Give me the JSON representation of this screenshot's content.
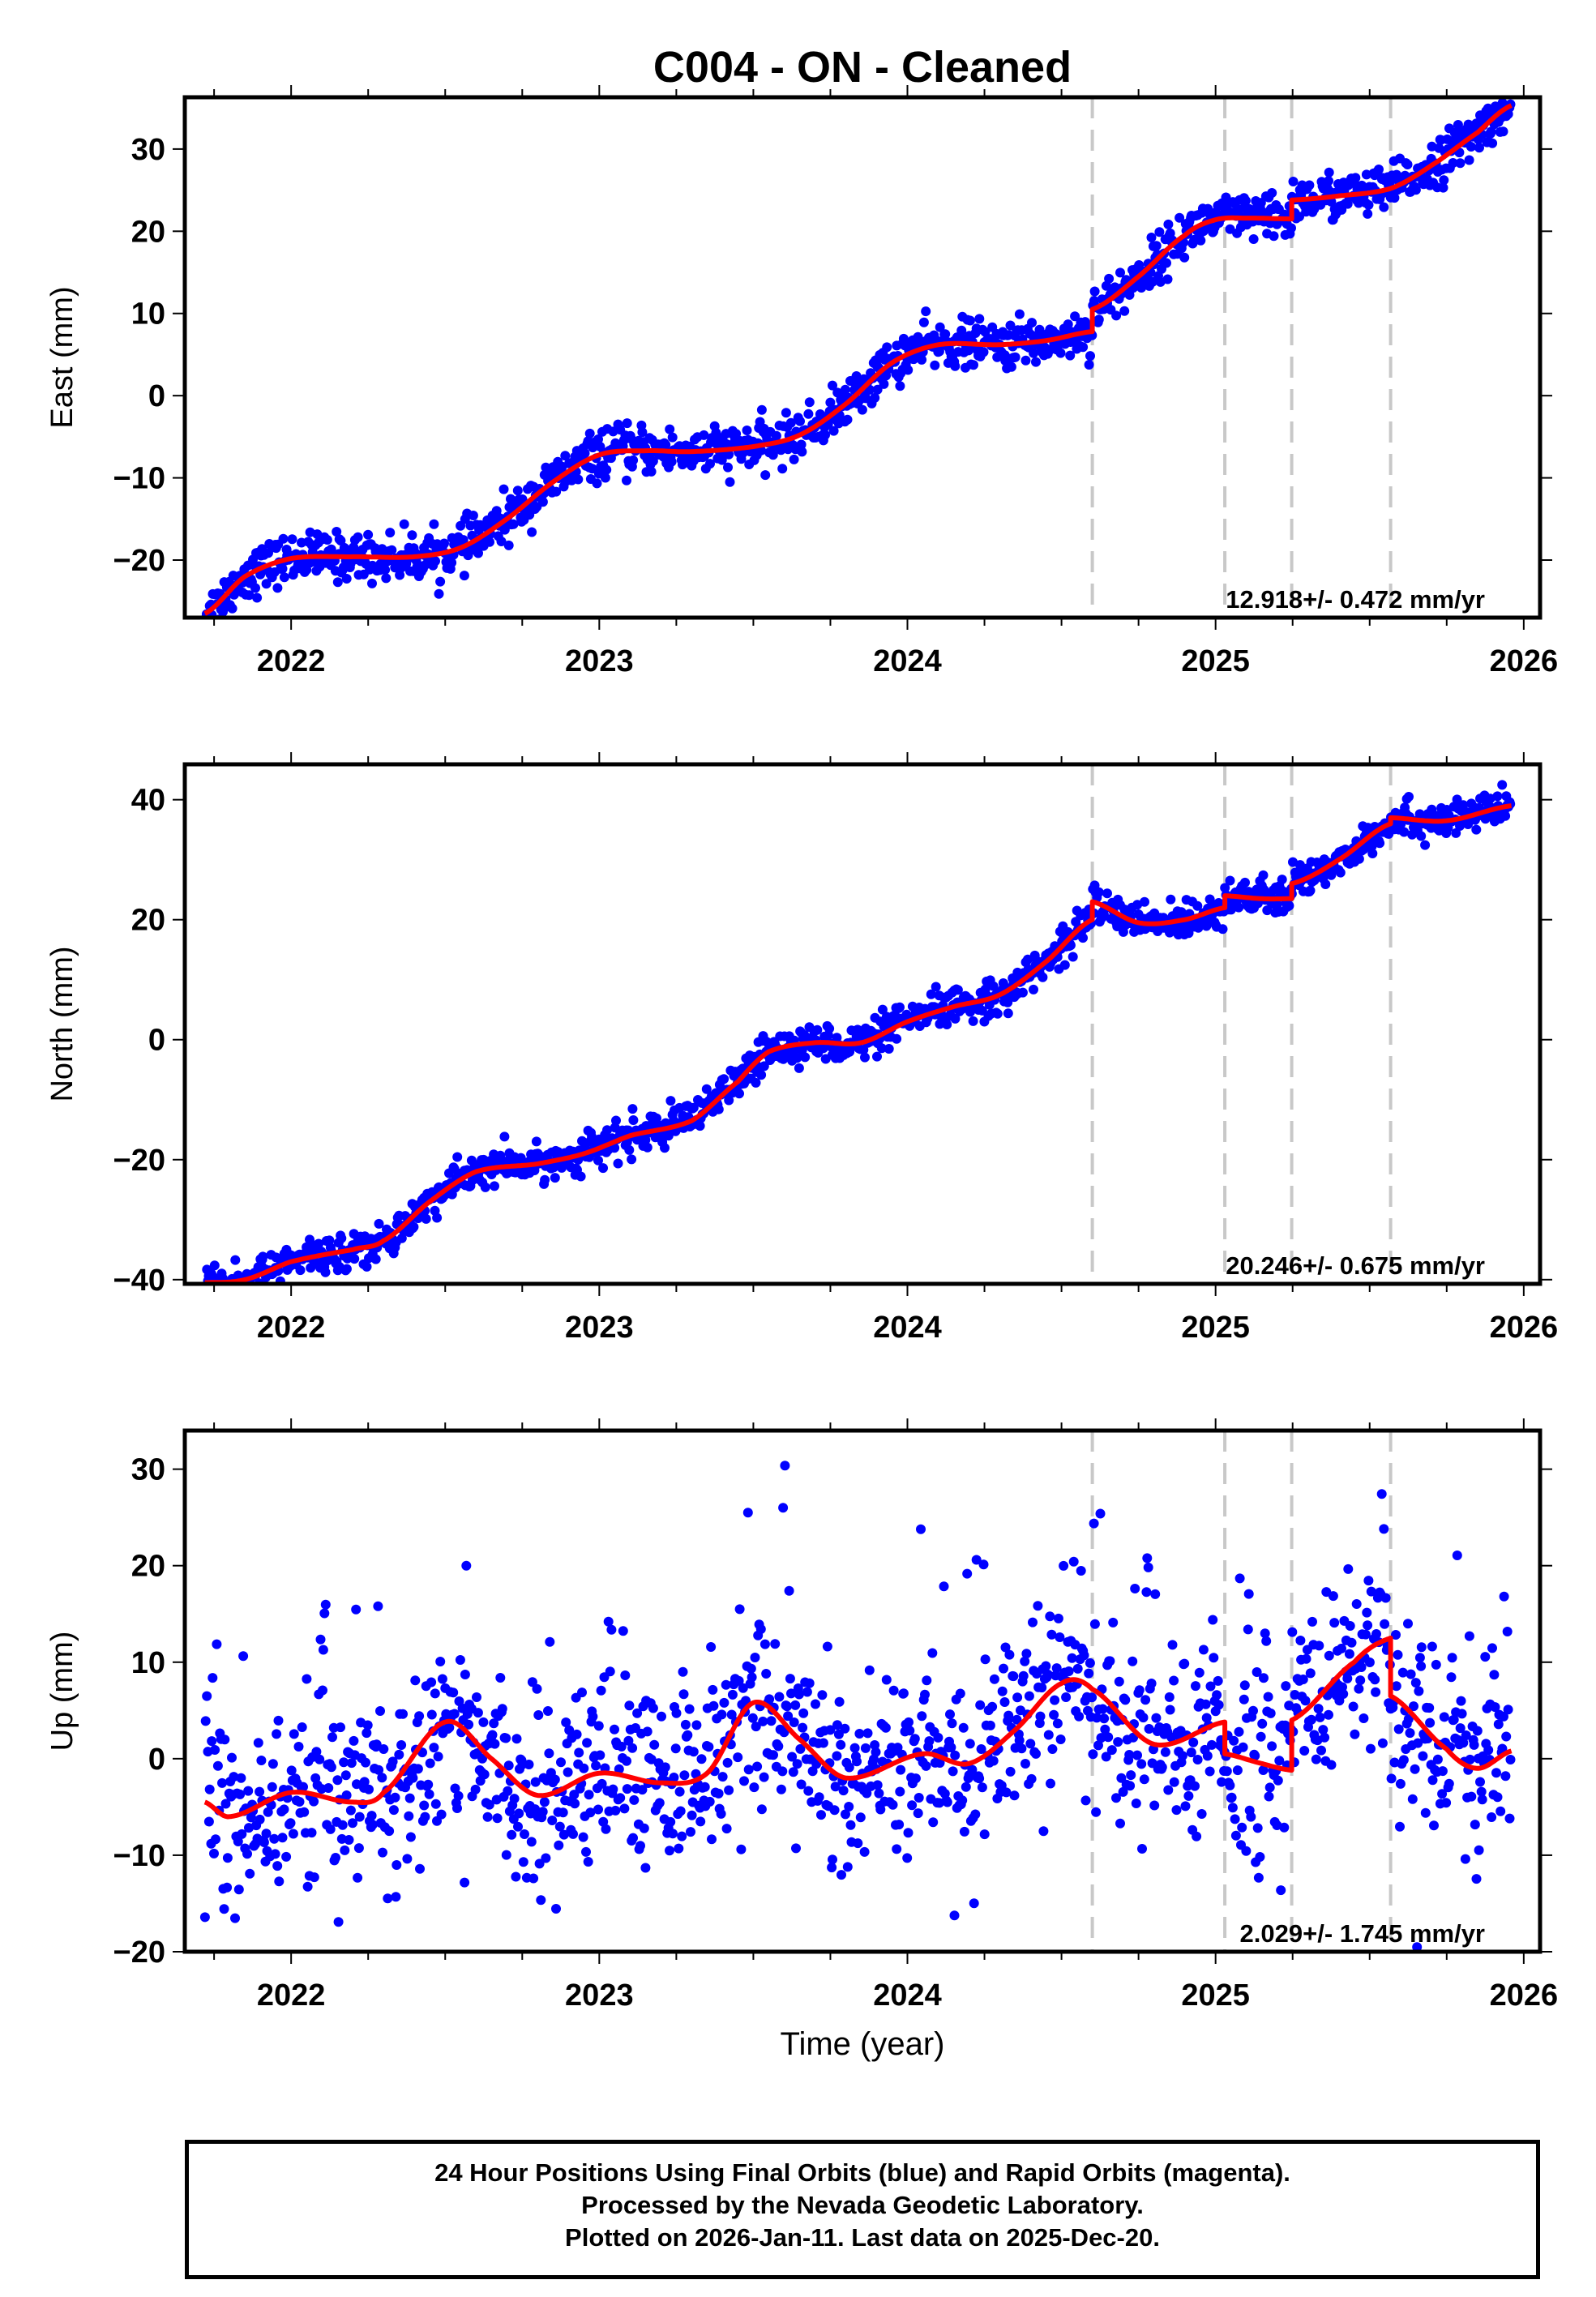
{
  "title": "C004  - ON - Cleaned",
  "xlabel": "Time (year)",
  "footer": {
    "line1": "24 Hour Positions Using Final Orbits (blue) and Rapid Orbits (magenta).",
    "line2": "Processed by the Nevada Geodetic Laboratory.",
    "line3": "Plotted on 2026-Jan-11. Last data on 2025-Dec-20."
  },
  "colors": {
    "points": "#0000ff",
    "fit": "#ff0000",
    "dashed": "#c8c8c8"
  },
  "chart_data": [
    {
      "type": "scatter",
      "title": "East",
      "ylabel": "East (mm)",
      "xlim": [
        2021.655,
        2026.053
      ],
      "ylim": [
        -27,
        36.3
      ],
      "xticks": [
        2022,
        2023,
        2024,
        2025,
        2026
      ],
      "yticks": [
        -20,
        -10,
        0,
        10,
        20,
        30
      ],
      "breaks": [
        2024.6,
        2025.03,
        2025.247,
        2025.568
      ],
      "rate_label": "12.918+/- 0.472 mm/yr",
      "data_span": [
        2021.72,
        2025.96
      ],
      "noise_mm": 1.4,
      "fit_segments": [
        [
          [
            2021.72,
            -26.5
          ],
          [
            2021.85,
            -22
          ],
          [
            2022.0,
            -19.8
          ],
          [
            2022.2,
            -19.6
          ],
          [
            2022.4,
            -19.6
          ],
          [
            2022.55,
            -18.5
          ],
          [
            2022.7,
            -15
          ],
          [
            2022.85,
            -10.5
          ],
          [
            2023.0,
            -7.2
          ],
          [
            2023.15,
            -6.7
          ],
          [
            2023.3,
            -6.8
          ],
          [
            2023.5,
            -6.2
          ],
          [
            2023.65,
            -4.8
          ],
          [
            2023.8,
            -1
          ],
          [
            2023.95,
            4
          ],
          [
            2024.1,
            6.2
          ],
          [
            2024.3,
            6.2
          ],
          [
            2024.45,
            6.7
          ],
          [
            2024.6,
            7.8
          ]
        ],
        [
          [
            2024.6,
            10.5
          ],
          [
            2024.75,
            14.5
          ],
          [
            2024.9,
            19.5
          ],
          [
            2025.0,
            21.4
          ],
          [
            2025.1,
            21.6
          ],
          [
            2025.247,
            21.5
          ]
        ],
        [
          [
            2025.247,
            23.8
          ],
          [
            2025.4,
            24.3
          ],
          [
            2025.568,
            25.2
          ],
          [
            2025.7,
            28
          ],
          [
            2025.85,
            32
          ],
          [
            2025.96,
            35.3
          ]
        ]
      ]
    },
    {
      "type": "scatter",
      "title": "North",
      "ylabel": "North (mm)",
      "xlim": [
        2021.655,
        2026.053
      ],
      "ylim": [
        -40.7,
        45.9
      ],
      "xticks": [
        2022,
        2023,
        2024,
        2025,
        2026
      ],
      "yticks": [
        -40,
        -20,
        0,
        20,
        40
      ],
      "breaks": [
        2024.6,
        2025.03,
        2025.247,
        2025.568
      ],
      "rate_label": "20.246+/- 0.675 mm/yr",
      "data_span": [
        2021.72,
        2025.96
      ],
      "noise_mm": 1.5,
      "fit_segments": [
        [
          [
            2021.72,
            -40.5
          ],
          [
            2021.85,
            -40
          ],
          [
            2022.0,
            -37
          ],
          [
            2022.2,
            -35
          ],
          [
            2022.3,
            -33.5
          ],
          [
            2022.45,
            -27
          ],
          [
            2022.6,
            -22
          ],
          [
            2022.8,
            -20.7
          ],
          [
            2022.95,
            -19
          ],
          [
            2023.1,
            -16
          ],
          [
            2023.3,
            -13.5
          ],
          [
            2023.45,
            -7
          ],
          [
            2023.55,
            -2
          ],
          [
            2023.7,
            -0.5
          ],
          [
            2023.85,
            -0.5
          ],
          [
            2024.0,
            3
          ],
          [
            2024.15,
            5.5
          ],
          [
            2024.3,
            7.5
          ],
          [
            2024.45,
            13
          ],
          [
            2024.6,
            20
          ]
        ],
        [
          [
            2024.6,
            23
          ],
          [
            2024.75,
            19.5
          ],
          [
            2024.9,
            20
          ],
          [
            2025.03,
            22
          ]
        ],
        [
          [
            2025.03,
            24
          ],
          [
            2025.15,
            23.5
          ],
          [
            2025.247,
            23.5
          ]
        ],
        [
          [
            2025.247,
            26
          ],
          [
            2025.4,
            30
          ],
          [
            2025.568,
            36
          ]
        ],
        [
          [
            2025.568,
            37
          ],
          [
            2025.75,
            36.5
          ],
          [
            2025.96,
            39
          ]
        ]
      ]
    },
    {
      "type": "scatter",
      "title": "Up",
      "ylabel": "Up (mm)",
      "xlim": [
        2021.655,
        2026.053
      ],
      "ylim": [
        -20,
        34
      ],
      "xticks": [
        2022,
        2023,
        2024,
        2025,
        2026
      ],
      "yticks": [
        -20,
        -10,
        0,
        10,
        20,
        30
      ],
      "breaks": [
        2024.6,
        2025.03,
        2025.247,
        2025.568
      ],
      "rate_label": "2.029+/- 1.745 mm/yr",
      "data_span": [
        2021.72,
        2025.96
      ],
      "noise_mm": 4.5,
      "fit_segments": [
        [
          [
            2021.72,
            -4.5
          ],
          [
            2021.8,
            -6
          ],
          [
            2022.0,
            -3.5
          ],
          [
            2022.2,
            -4.5
          ],
          [
            2022.3,
            -3.5
          ],
          [
            2022.5,
            3.8
          ],
          [
            2022.65,
            0
          ],
          [
            2022.8,
            -3.8
          ],
          [
            2023.0,
            -1.5
          ],
          [
            2023.2,
            -2.5
          ],
          [
            2023.35,
            -1.5
          ],
          [
            2023.5,
            5.8
          ],
          [
            2023.65,
            2
          ],
          [
            2023.8,
            -2
          ],
          [
            2024.05,
            0.5
          ],
          [
            2024.2,
            -0.5
          ],
          [
            2024.35,
            3
          ],
          [
            2024.5,
            7.8
          ],
          [
            2024.6,
            7.2
          ],
          [
            2024.8,
            1.5
          ],
          [
            2025.03,
            3.8
          ]
        ],
        [
          [
            2025.03,
            0.5
          ],
          [
            2025.15,
            -0.5
          ],
          [
            2025.247,
            -1.2
          ]
        ],
        [
          [
            2025.247,
            4
          ],
          [
            2025.45,
            10
          ],
          [
            2025.568,
            12.5
          ]
        ],
        [
          [
            2025.568,
            6.5
          ],
          [
            2025.75,
            1
          ],
          [
            2025.85,
            -1
          ],
          [
            2025.96,
            0.8
          ]
        ]
      ]
    }
  ]
}
